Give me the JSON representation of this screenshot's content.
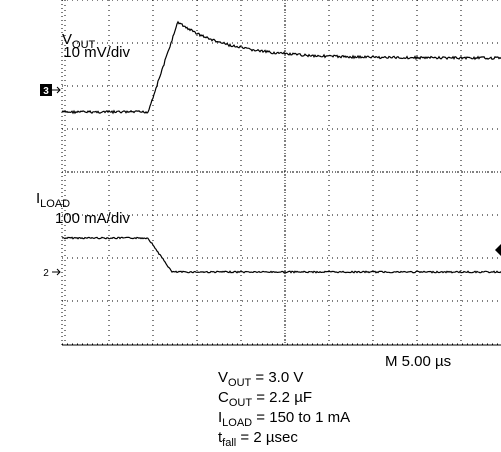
{
  "channel_1": {
    "name": {
      "main": "V",
      "sub": "OUT"
    },
    "scale": "10 mV/div",
    "marker": "3"
  },
  "channel_2": {
    "name": {
      "main": "I",
      "sub": "LOAD"
    },
    "scale": "100 mA/div",
    "marker": "2"
  },
  "timebase": "M 5.00 µs",
  "notes": [
    {
      "main": "V",
      "sub": "OUT",
      "rest": " = 3.0 V"
    },
    {
      "main": "C",
      "sub": "OUT",
      "rest": " = 2.2 µF"
    },
    {
      "main": "I",
      "sub": "LOAD",
      "rest": " = 150 to 1 mA"
    },
    {
      "main": "t",
      "sub": "fall",
      "rest": " = 2 µsec"
    }
  ]
}
